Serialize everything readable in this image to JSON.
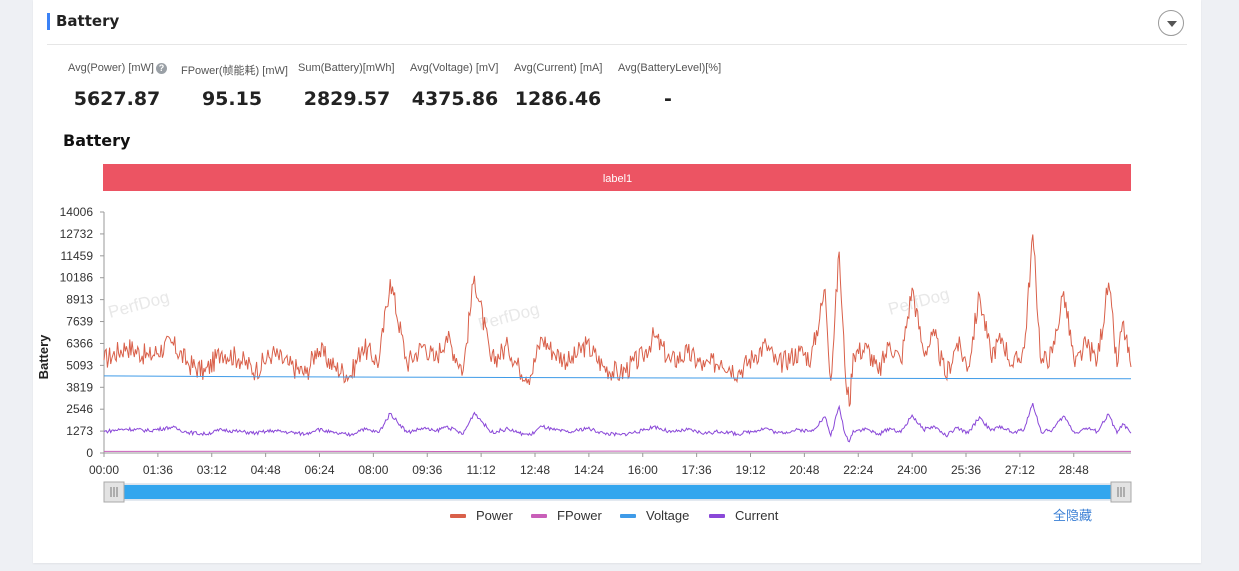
{
  "section": {
    "title": "Battery"
  },
  "metrics": [
    {
      "label": "Avg(Power) [mW]",
      "value": "5627.87",
      "help": true
    },
    {
      "label": "FPower(帧能耗) [mW]",
      "value": "95.15"
    },
    {
      "label": "Sum(Battery)[mWh]",
      "value": "2829.57"
    },
    {
      "label": "Avg(Voltage) [mV]",
      "value": "4375.86"
    },
    {
      "label": "Avg(Current) [mA]",
      "value": "1286.46"
    },
    {
      "label": "Avg(BatteryLevel)[%]",
      "value": "-"
    }
  ],
  "help_icon_glyph": "?",
  "chart_data": {
    "type": "line",
    "title": "Battery",
    "ylabel": "Battery",
    "label_band": "label1",
    "watermark": "PerfDog",
    "x_ticks": [
      "00:00",
      "01:36",
      "03:12",
      "04:48",
      "06:24",
      "08:00",
      "09:36",
      "11:12",
      "12:48",
      "14:24",
      "16:00",
      "17:36",
      "19:12",
      "20:48",
      "22:24",
      "24:00",
      "25:36",
      "27:12",
      "28:48"
    ],
    "y_ticks": [
      "14006",
      "12732",
      "11459",
      "10186",
      "8913",
      "7639",
      "6366",
      "5093",
      "3819",
      "2546",
      "1273",
      "0"
    ],
    "ylim": [
      0,
      14006
    ],
    "x_range_seconds": [
      0,
      1830
    ],
    "series": [
      {
        "name": "Power",
        "color": "#d9604a",
        "points": [
          [
            0,
            5400
          ],
          [
            40,
            6200
          ],
          [
            80,
            5600
          ],
          [
            120,
            6400
          ],
          [
            150,
            5200
          ],
          [
            180,
            4700
          ],
          [
            210,
            5900
          ],
          [
            240,
            5500
          ],
          [
            270,
            4800
          ],
          [
            300,
            5800
          ],
          [
            330,
            5100
          ],
          [
            360,
            4600
          ],
          [
            380,
            6100
          ],
          [
            410,
            5000
          ],
          [
            440,
            4500
          ],
          [
            460,
            6200
          ],
          [
            490,
            5300
          ],
          [
            510,
            10100
          ],
          [
            540,
            5200
          ],
          [
            570,
            6300
          ],
          [
            590,
            5400
          ],
          [
            610,
            6800
          ],
          [
            640,
            4800
          ],
          [
            660,
            10300
          ],
          [
            690,
            5300
          ],
          [
            720,
            6200
          ],
          [
            740,
            4900
          ],
          [
            760,
            4500
          ],
          [
            780,
            6700
          ],
          [
            800,
            5900
          ],
          [
            830,
            5300
          ],
          [
            860,
            6300
          ],
          [
            890,
            5000
          ],
          [
            920,
            4600
          ],
          [
            960,
            5600
          ],
          [
            980,
            6800
          ],
          [
            1010,
            5300
          ],
          [
            1040,
            5800
          ],
          [
            1070,
            5000
          ],
          [
            1100,
            5400
          ],
          [
            1130,
            4700
          ],
          [
            1160,
            5700
          ],
          [
            1180,
            6300
          ],
          [
            1200,
            5100
          ],
          [
            1240,
            5900
          ],
          [
            1260,
            5500
          ],
          [
            1285,
            9500
          ],
          [
            1295,
            4200
          ],
          [
            1310,
            11700
          ],
          [
            1320,
            5100
          ],
          [
            1328,
            2700
          ],
          [
            1335,
            5800
          ],
          [
            1360,
            6100
          ],
          [
            1380,
            4600
          ],
          [
            1400,
            6400
          ],
          [
            1420,
            5300
          ],
          [
            1440,
            9600
          ],
          [
            1460,
            5900
          ],
          [
            1480,
            6800
          ],
          [
            1500,
            4400
          ],
          [
            1520,
            6400
          ],
          [
            1540,
            5000
          ],
          [
            1560,
            9200
          ],
          [
            1580,
            5700
          ],
          [
            1600,
            6700
          ],
          [
            1620,
            5000
          ],
          [
            1640,
            6100
          ],
          [
            1655,
            12700
          ],
          [
            1670,
            5200
          ],
          [
            1690,
            5800
          ],
          [
            1710,
            9400
          ],
          [
            1730,
            5000
          ],
          [
            1750,
            6300
          ],
          [
            1770,
            5400
          ],
          [
            1790,
            9900
          ],
          [
            1805,
            5000
          ],
          [
            1815,
            7600
          ],
          [
            1830,
            5000
          ]
        ]
      },
      {
        "name": "FPower",
        "color": "#c95fb9",
        "points": [
          [
            0,
            95
          ],
          [
            300,
            100
          ],
          [
            600,
            90
          ],
          [
            900,
            110
          ],
          [
            1200,
            95
          ],
          [
            1500,
            105
          ],
          [
            1830,
            95
          ]
        ]
      },
      {
        "name": "Voltage",
        "color": "#3f9be8",
        "points": [
          [
            0,
            4480
          ],
          [
            300,
            4430
          ],
          [
            600,
            4400
          ],
          [
            900,
            4370
          ],
          [
            1200,
            4350
          ],
          [
            1500,
            4330
          ],
          [
            1830,
            4320
          ]
        ]
      },
      {
        "name": "Current",
        "color": "#8a48d8",
        "points": [
          [
            0,
            1250
          ],
          [
            40,
            1400
          ],
          [
            80,
            1300
          ],
          [
            120,
            1500
          ],
          [
            150,
            1200
          ],
          [
            180,
            1100
          ],
          [
            210,
            1350
          ],
          [
            240,
            1250
          ],
          [
            270,
            1150
          ],
          [
            300,
            1300
          ],
          [
            330,
            1200
          ],
          [
            360,
            1100
          ],
          [
            380,
            1400
          ],
          [
            410,
            1150
          ],
          [
            440,
            1050
          ],
          [
            460,
            1400
          ],
          [
            490,
            1200
          ],
          [
            510,
            2300
          ],
          [
            540,
            1200
          ],
          [
            570,
            1450
          ],
          [
            590,
            1250
          ],
          [
            610,
            1550
          ],
          [
            640,
            1100
          ],
          [
            660,
            2350
          ],
          [
            690,
            1200
          ],
          [
            720,
            1400
          ],
          [
            740,
            1150
          ],
          [
            760,
            1050
          ],
          [
            780,
            1550
          ],
          [
            800,
            1350
          ],
          [
            830,
            1200
          ],
          [
            860,
            1450
          ],
          [
            890,
            1150
          ],
          [
            920,
            1050
          ],
          [
            960,
            1300
          ],
          [
            980,
            1550
          ],
          [
            1010,
            1200
          ],
          [
            1040,
            1350
          ],
          [
            1070,
            1150
          ],
          [
            1100,
            1250
          ],
          [
            1130,
            1100
          ],
          [
            1160,
            1300
          ],
          [
            1180,
            1450
          ],
          [
            1200,
            1150
          ],
          [
            1240,
            1350
          ],
          [
            1260,
            1250
          ],
          [
            1285,
            2100
          ],
          [
            1295,
            1000
          ],
          [
            1310,
            2700
          ],
          [
            1320,
            1150
          ],
          [
            1328,
            650
          ],
          [
            1335,
            1300
          ],
          [
            1360,
            1400
          ],
          [
            1380,
            1050
          ],
          [
            1400,
            1450
          ],
          [
            1420,
            1200
          ],
          [
            1440,
            2200
          ],
          [
            1460,
            1350
          ],
          [
            1480,
            1550
          ],
          [
            1500,
            1000
          ],
          [
            1520,
            1450
          ],
          [
            1540,
            1150
          ],
          [
            1560,
            2100
          ],
          [
            1580,
            1300
          ],
          [
            1600,
            1550
          ],
          [
            1620,
            1150
          ],
          [
            1640,
            1400
          ],
          [
            1655,
            2900
          ],
          [
            1670,
            1200
          ],
          [
            1690,
            1350
          ],
          [
            1710,
            2150
          ],
          [
            1730,
            1150
          ],
          [
            1750,
            1450
          ],
          [
            1770,
            1250
          ],
          [
            1790,
            2250
          ],
          [
            1805,
            1150
          ],
          [
            1815,
            1700
          ],
          [
            1830,
            1150
          ]
        ]
      }
    ],
    "legend": [
      "Power",
      "FPower",
      "Voltage",
      "Current"
    ],
    "legend_hide_all": "全隐藏"
  }
}
